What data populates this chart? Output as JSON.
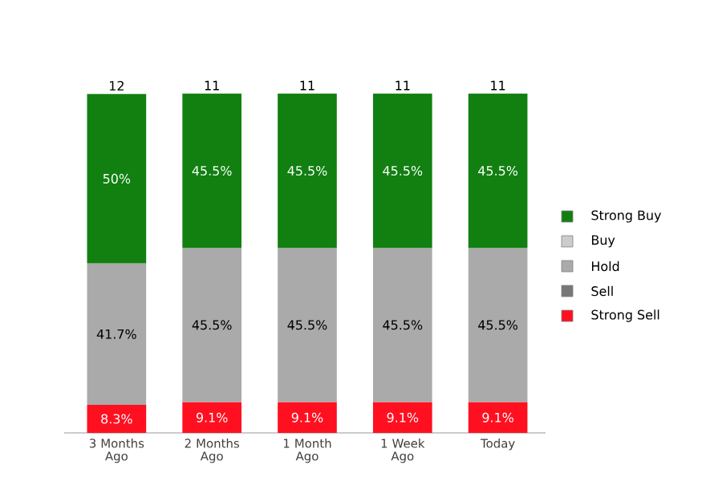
{
  "chart_data": {
    "type": "bar",
    "stacked": true,
    "legend": "right",
    "categories": [
      "3 Months Ago",
      "2 Months Ago",
      "1 Month Ago",
      "1 Week Ago",
      "Today"
    ],
    "series": [
      {
        "name": "Strong Sell",
        "color": "#ff1020",
        "values": [
          8.3,
          9.1,
          9.1,
          9.1,
          9.1
        ],
        "value_labels": [
          "8.3%",
          "9.1%",
          "9.1%",
          "9.1%",
          "9.1%"
        ]
      },
      {
        "name": "Sell",
        "color": "#777777",
        "values": [
          null,
          null,
          null,
          null,
          null
        ]
      },
      {
        "name": "Hold",
        "color": "#aaaaaa",
        "values": [
          41.7,
          45.5,
          45.5,
          45.5,
          45.5
        ],
        "value_labels": [
          "41.7%",
          "45.5%",
          "45.5%",
          "45.5%",
          "45.5%"
        ]
      },
      {
        "name": "Buy",
        "color": "#cccccc",
        "values": [
          null,
          null,
          null,
          null,
          null
        ]
      },
      {
        "name": "Strong Buy",
        "color": "#118011",
        "values": [
          50,
          45.5,
          45.5,
          45.5,
          45.5
        ],
        "value_labels": [
          "50%",
          "45.5%",
          "45.5%",
          "45.5%",
          "45.5%"
        ]
      }
    ],
    "annotations": [
      {
        "text": "12",
        "x": "3 Months Ago",
        "y": 100
      },
      {
        "text": "11",
        "x": "2 Months Ago",
        "y": 100.1
      },
      {
        "text": "11",
        "x": "1 Month Ago",
        "y": 100.1
      },
      {
        "text": "11",
        "x": "1 Week Ago",
        "y": 100.1
      },
      {
        "text": "11",
        "x": "Today",
        "y": 100.1
      }
    ]
  }
}
